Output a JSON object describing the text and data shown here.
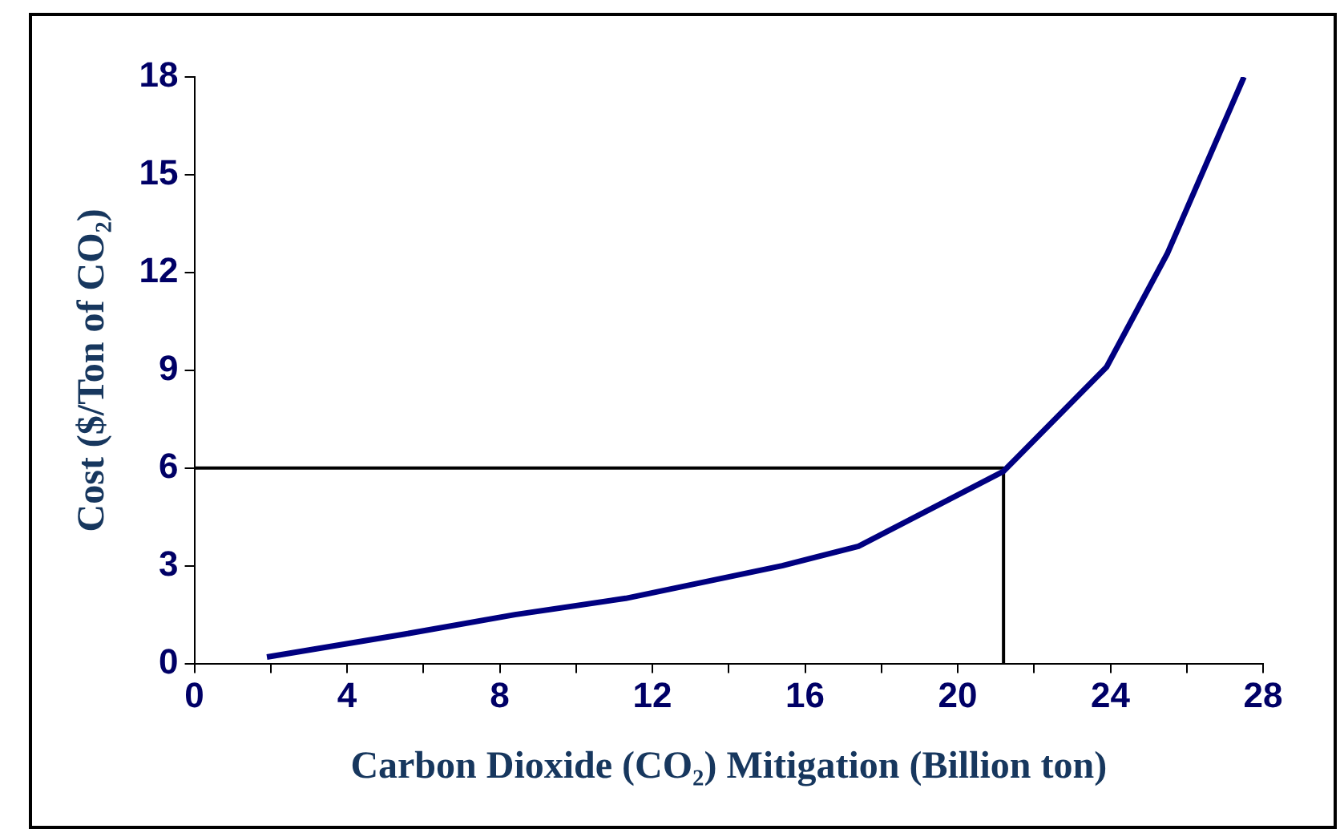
{
  "chart_data": {
    "type": "line",
    "xlabel": "Carbon Dioxide (CO₂) Mitigation (Billion ton)",
    "ylabel": "Cost ($/Ton of CO₂)",
    "series": [
      {
        "color": "#000080",
        "x": [
          1.9,
          5.5,
          8.4,
          11.3,
          15.4,
          17.4,
          21.2,
          23.9,
          25.5,
          27.5
        ],
        "values": [
          0.2,
          0.9,
          1.5,
          2.0,
          3.0,
          3.6,
          5.9,
          9.1,
          12.6,
          18.0
        ]
      },
      {
        "color": "#000000",
        "x": [
          0,
          21.2,
          21.2
        ],
        "values": [
          6,
          6,
          0
        ]
      }
    ],
    "xlim": [
      0,
      28
    ],
    "xticks": [
      0,
      {
        "value": 2,
        "label": null
      },
      4,
      {
        "value": 6,
        "label": null
      },
      8,
      {
        "value": 10,
        "label": null
      },
      12,
      {
        "value": 14,
        "label": null
      },
      16,
      {
        "value": 18,
        "label": null
      },
      20,
      {
        "value": 22,
        "label": null
      },
      24,
      {
        "value": 26,
        "label": null
      },
      28
    ],
    "ylim": [
      0,
      18
    ],
    "yticks": [
      0,
      3,
      6,
      9,
      12,
      15,
      18
    ],
    "grid": false,
    "legend": false,
    "marker": "none",
    "line_style": "solid"
  }
}
